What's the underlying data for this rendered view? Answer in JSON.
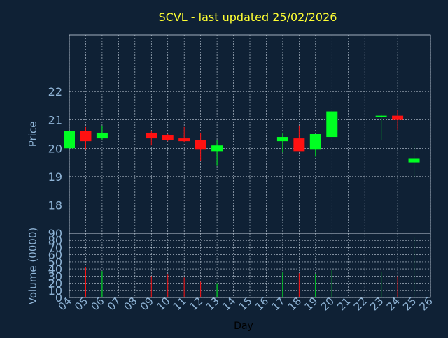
{
  "colors": {
    "background": "#0f2135",
    "title": "#ffff33",
    "axis_text": "#8fb4d6",
    "grid": "#c8d4e0",
    "up": "#00ff22",
    "down": "#ff1111"
  },
  "chart_data": {
    "type": "candlestick",
    "title": "SCVL - last updated 25/02/2026",
    "xlabel": "Day",
    "ylabel_price": "Price",
    "ylabel_volume": "Volume (0000)",
    "x_ticks": [
      "04",
      "05",
      "06",
      "07",
      "08",
      "09",
      "10",
      "11",
      "12",
      "13",
      "14",
      "15",
      "16",
      "17",
      "18",
      "19",
      "20",
      "21",
      "22",
      "23",
      "24",
      "25",
      "26"
    ],
    "price_ticks": [
      18,
      19,
      20,
      21,
      22
    ],
    "price_range": [
      17.0,
      24.0
    ],
    "volume_ticks": [
      0,
      10,
      20,
      30,
      40,
      50,
      60,
      70,
      80,
      90
    ],
    "volume_range": [
      0,
      90
    ],
    "grid": true,
    "candles": [
      {
        "day": "04",
        "open": 20.0,
        "high": 20.6,
        "low": 20.0,
        "close": 20.6,
        "volume": 0
      },
      {
        "day": "05",
        "open": 20.6,
        "high": 20.75,
        "low": 19.95,
        "close": 20.25,
        "volume": 43
      },
      {
        "day": "06",
        "open": 20.35,
        "high": 20.8,
        "low": 20.3,
        "close": 20.55,
        "volume": 37
      },
      {
        "day": "09",
        "open": 20.55,
        "high": 20.6,
        "low": 20.1,
        "close": 20.35,
        "volume": 30
      },
      {
        "day": "10",
        "open": 20.45,
        "high": 20.5,
        "low": 20.25,
        "close": 20.3,
        "volume": 32
      },
      {
        "day": "11",
        "open": 20.35,
        "high": 20.75,
        "low": 20.2,
        "close": 20.25,
        "volume": 28
      },
      {
        "day": "12",
        "open": 20.3,
        "high": 20.55,
        "low": 19.55,
        "close": 19.95,
        "volume": 22
      },
      {
        "day": "13",
        "open": 19.9,
        "high": 20.3,
        "low": 19.4,
        "close": 20.1,
        "volume": 20
      },
      {
        "day": "17",
        "open": 20.25,
        "high": 20.55,
        "low": 19.85,
        "close": 20.4,
        "volume": 35
      },
      {
        "day": "18",
        "open": 20.35,
        "high": 20.8,
        "low": 19.9,
        "close": 19.9,
        "volume": 34
      },
      {
        "day": "19",
        "open": 19.95,
        "high": 20.5,
        "low": 19.7,
        "close": 20.5,
        "volume": 33
      },
      {
        "day": "20",
        "open": 20.4,
        "high": 21.3,
        "low": 20.4,
        "close": 21.3,
        "volume": 38
      },
      {
        "day": "23",
        "open": 21.15,
        "high": 21.2,
        "low": 20.3,
        "close": 21.15,
        "volume": 36
      },
      {
        "day": "24",
        "open": 21.15,
        "high": 21.35,
        "low": 20.65,
        "close": 21.0,
        "volume": 30
      },
      {
        "day": "25",
        "open": 19.5,
        "high": 20.15,
        "low": 19.0,
        "close": 19.65,
        "volume": 84
      }
    ]
  }
}
